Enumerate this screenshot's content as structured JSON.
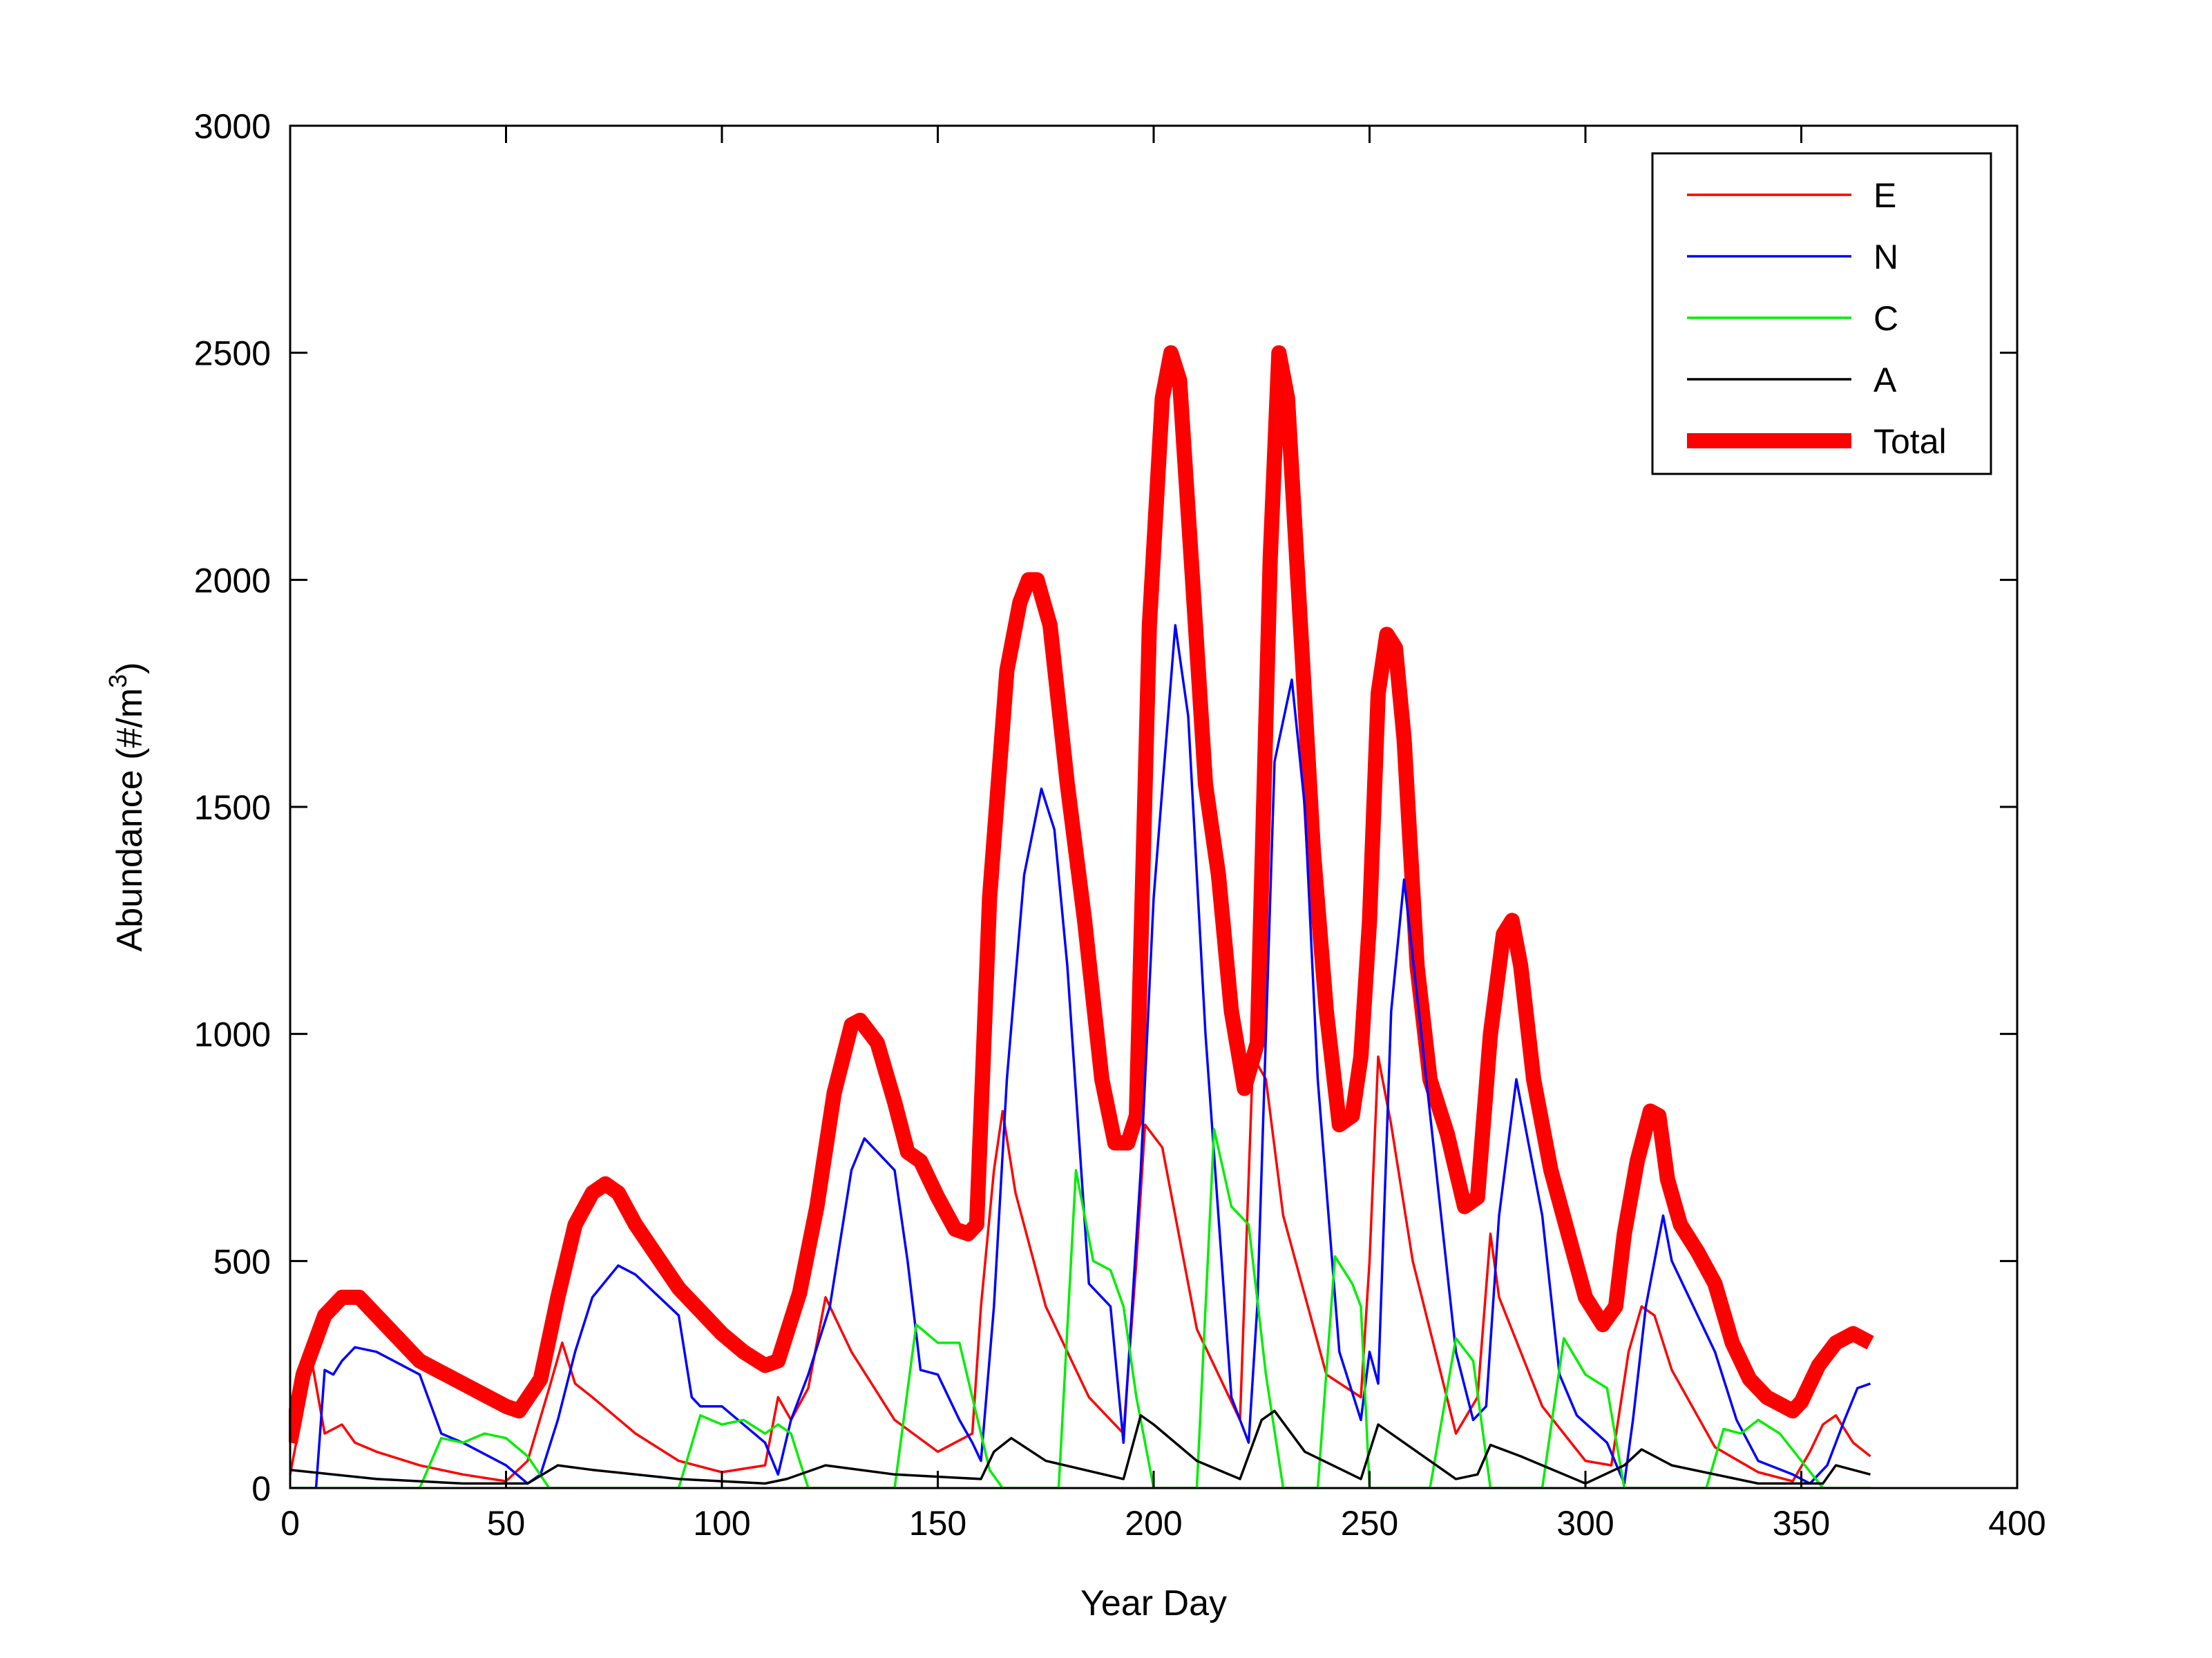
{
  "chart_data": {
    "type": "line",
    "title": "",
    "xlabel": "Year Day",
    "ylabel": "Abundance (#/m",
    "ylabel_superscript": "3",
    "ylabel_suffix": ")",
    "xlim": [
      0,
      400
    ],
    "ylim": [
      0,
      3000
    ],
    "xticks": [
      0,
      50,
      100,
      150,
      200,
      250,
      300,
      350,
      400
    ],
    "yticks": [
      0,
      500,
      1000,
      1500,
      2000,
      2500,
      3000
    ],
    "grid": false,
    "legend_position": "top-right",
    "series": [
      {
        "name": "E",
        "color": "#ff0000",
        "x": [
          0,
          5,
          8,
          12,
          15,
          20,
          30,
          40,
          50,
          55,
          60,
          63,
          66,
          70,
          80,
          90,
          100,
          110,
          113,
          116,
          120,
          124,
          130,
          140,
          150,
          158,
          160,
          163,
          165,
          168,
          175,
          185,
          193,
          196,
          198,
          202,
          210,
          220,
          223,
          226,
          230,
          240,
          248,
          250,
          252,
          255,
          260,
          270,
          275,
          278,
          280,
          290,
          300,
          306,
          310,
          313,
          316,
          320,
          330,
          340,
          348,
          352,
          355,
          358,
          362,
          366
        ],
        "y": [
          30,
          280,
          120,
          140,
          100,
          80,
          50,
          30,
          15,
          60,
          220,
          320,
          230,
          200,
          120,
          60,
          35,
          50,
          200,
          150,
          220,
          420,
          300,
          150,
          80,
          120,
          400,
          700,
          830,
          650,
          400,
          200,
          120,
          500,
          800,
          750,
          350,
          150,
          950,
          900,
          600,
          250,
          200,
          500,
          950,
          800,
          500,
          120,
          200,
          560,
          420,
          180,
          60,
          50,
          300,
          400,
          380,
          260,
          90,
          35,
          15,
          80,
          140,
          160,
          100,
          70
        ]
      },
      {
        "name": "N",
        "color": "#0000ff",
        "x": [
          0,
          6,
          8,
          10,
          12,
          15,
          20,
          30,
          35,
          40,
          50,
          55,
          58,
          62,
          66,
          70,
          76,
          80,
          90,
          93,
          95,
          100,
          110,
          113,
          116,
          120,
          125,
          130,
          133,
          140,
          143,
          146,
          150,
          155,
          158,
          160,
          163,
          166,
          170,
          174,
          177,
          180,
          185,
          190,
          193,
          197,
          200,
          205,
          208,
          212,
          218,
          222,
          224,
          228,
          232,
          235,
          238,
          243,
          248,
          250,
          252,
          255,
          258,
          262,
          270,
          274,
          277,
          280,
          284,
          290,
          294,
          298,
          305,
          309,
          311,
          314,
          318,
          320,
          330,
          335,
          340,
          348,
          352,
          356,
          360,
          363,
          366
        ],
        "y": [
          0,
          0,
          260,
          250,
          280,
          310,
          300,
          250,
          120,
          100,
          50,
          10,
          30,
          150,
          300,
          420,
          490,
          470,
          380,
          200,
          180,
          180,
          100,
          30,
          150,
          250,
          400,
          700,
          770,
          700,
          500,
          260,
          250,
          150,
          100,
          60,
          400,
          900,
          1350,
          1540,
          1450,
          1150,
          450,
          400,
          100,
          700,
          1300,
          1900,
          1700,
          1000,
          200,
          100,
          400,
          1600,
          1780,
          1500,
          900,
          300,
          150,
          300,
          230,
          1050,
          1340,
          1000,
          300,
          150,
          180,
          600,
          900,
          600,
          250,
          160,
          100,
          10,
          150,
          400,
          600,
          500,
          300,
          150,
          60,
          30,
          10,
          50,
          150,
          220,
          230
        ]
      },
      {
        "name": "C",
        "color": "#00ee00",
        "x": [
          0,
          30,
          35,
          40,
          45,
          50,
          55,
          60,
          90,
          95,
          100,
          105,
          110,
          113,
          116,
          120,
          140,
          145,
          150,
          155,
          158,
          162,
          165,
          178,
          182,
          186,
          190,
          193,
          196,
          200,
          210,
          214,
          218,
          222,
          226,
          230,
          238,
          242,
          246,
          248,
          250,
          254,
          264,
          270,
          274,
          278,
          290,
          295,
          300,
          305,
          309,
          328,
          332,
          336,
          340,
          345,
          350,
          355,
          366
        ],
        "y": [
          0,
          0,
          110,
          100,
          120,
          110,
          70,
          0,
          0,
          160,
          140,
          150,
          120,
          140,
          120,
          0,
          0,
          360,
          320,
          320,
          200,
          40,
          0,
          0,
          700,
          500,
          480,
          400,
          200,
          0,
          0,
          790,
          620,
          580,
          250,
          0,
          0,
          510,
          450,
          400,
          0,
          0,
          0,
          330,
          280,
          0,
          0,
          330,
          250,
          220,
          0,
          0,
          130,
          120,
          150,
          120,
          60,
          0,
          0
        ]
      },
      {
        "name": "A",
        "color": "#000000",
        "x": [
          0,
          20,
          40,
          55,
          62,
          70,
          90,
          110,
          115,
          124,
          140,
          160,
          163,
          167,
          175,
          193,
          197,
          200,
          210,
          220,
          225,
          228,
          235,
          248,
          252,
          258,
          270,
          275,
          278,
          285,
          300,
          309,
          313,
          320,
          340,
          355,
          358,
          362,
          366
        ],
        "y": [
          40,
          20,
          10,
          10,
          50,
          40,
          20,
          10,
          20,
          50,
          30,
          20,
          80,
          110,
          60,
          20,
          160,
          140,
          60,
          20,
          150,
          170,
          80,
          20,
          140,
          100,
          20,
          30,
          95,
          70,
          10,
          50,
          85,
          50,
          10,
          10,
          50,
          40,
          30
        ]
      },
      {
        "name": "Total",
        "color": "#ff0000",
        "x": [
          0,
          3,
          8,
          12,
          16,
          20,
          30,
          40,
          50,
          53,
          58,
          62,
          66,
          70,
          73,
          76,
          80,
          90,
          100,
          105,
          110,
          113,
          118,
          122,
          126,
          130,
          132,
          136,
          140,
          143,
          146,
          150,
          154,
          157,
          159,
          162,
          166,
          169,
          171,
          173,
          176,
          180,
          184,
          188,
          191,
          194,
          196,
          199,
          202,
          204,
          206,
          209,
          212,
          215,
          218,
          221,
          224,
          227,
          229,
          231,
          234,
          237,
          240,
          243,
          246,
          248,
          250,
          252,
          254,
          256,
          258,
          261,
          264,
          268,
          272,
          275,
          278,
          281,
          283,
          285,
          288,
          292,
          296,
          300,
          304,
          307,
          309,
          312,
          315,
          317,
          319,
          322,
          326,
          330,
          334,
          338,
          342,
          346,
          348,
          350,
          354,
          358,
          362,
          366
        ],
        "y": [
          100,
          250,
          380,
          420,
          420,
          380,
          280,
          230,
          180,
          170,
          240,
          420,
          580,
          650,
          670,
          650,
          580,
          440,
          340,
          300,
          270,
          280,
          430,
          620,
          870,
          1020,
          1030,
          980,
          850,
          740,
          720,
          640,
          570,
          560,
          580,
          1300,
          1800,
          1950,
          2000,
          2000,
          1900,
          1550,
          1250,
          900,
          760,
          760,
          820,
          1900,
          2400,
          2500,
          2440,
          2000,
          1550,
          1350,
          1050,
          880,
          980,
          2050,
          2500,
          2400,
          1900,
          1400,
          1050,
          800,
          820,
          950,
          1250,
          1750,
          1880,
          1850,
          1650,
          1150,
          900,
          780,
          620,
          640,
          1000,
          1220,
          1250,
          1150,
          900,
          700,
          560,
          420,
          360,
          400,
          560,
          720,
          830,
          820,
          680,
          580,
          520,
          450,
          320,
          240,
          200,
          180,
          170,
          190,
          270,
          320,
          340,
          320
        ]
      }
    ]
  }
}
